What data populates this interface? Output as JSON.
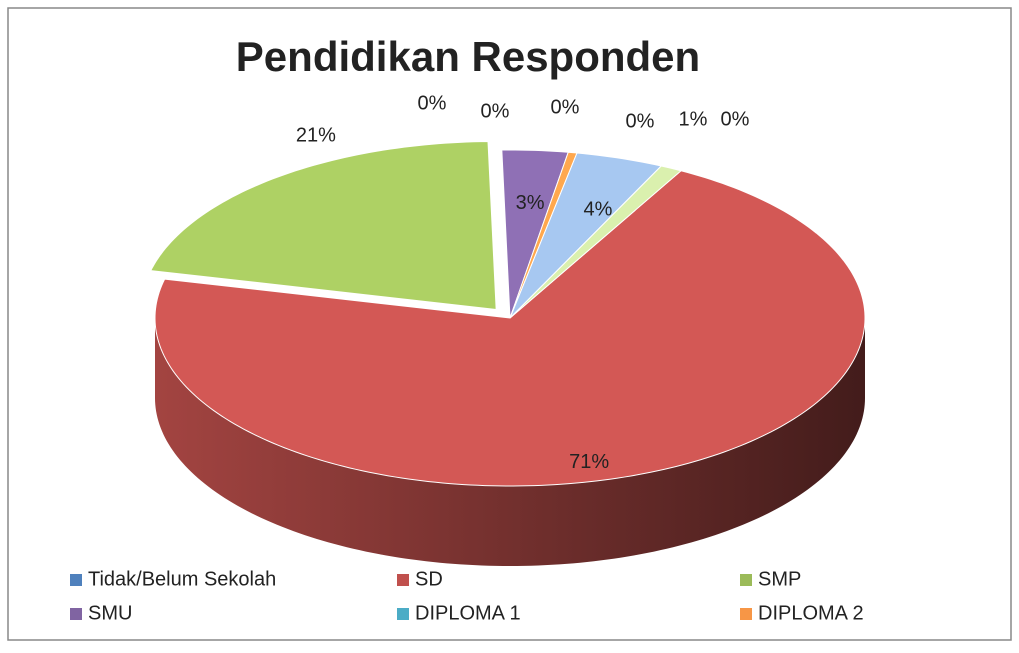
{
  "chart_data": {
    "type": "pie",
    "title": "Pendidikan Responden",
    "categories": [
      "Tidak/Belum Sekolah",
      "SD",
      "SMP",
      "SMU",
      "DIPLOMA 1",
      "DIPLOMA 2",
      null,
      null,
      null,
      null
    ],
    "values": [
      0,
      71,
      21,
      3,
      0,
      0.4,
      4,
      0,
      1,
      0
    ],
    "value_labels": [
      "0%",
      "71%",
      "21%",
      "3%",
      "0%",
      "0%",
      "4%",
      "0%",
      "1%",
      "0%"
    ],
    "colors": [
      "#4f81bd",
      "#c0504d",
      "#9bbb59",
      "#8064a2",
      "#4bacc6",
      "#f79646",
      "#95b3d7",
      "#d99694",
      "#c3d69b",
      "#b3a2c7"
    ],
    "legend": "bottom"
  }
}
